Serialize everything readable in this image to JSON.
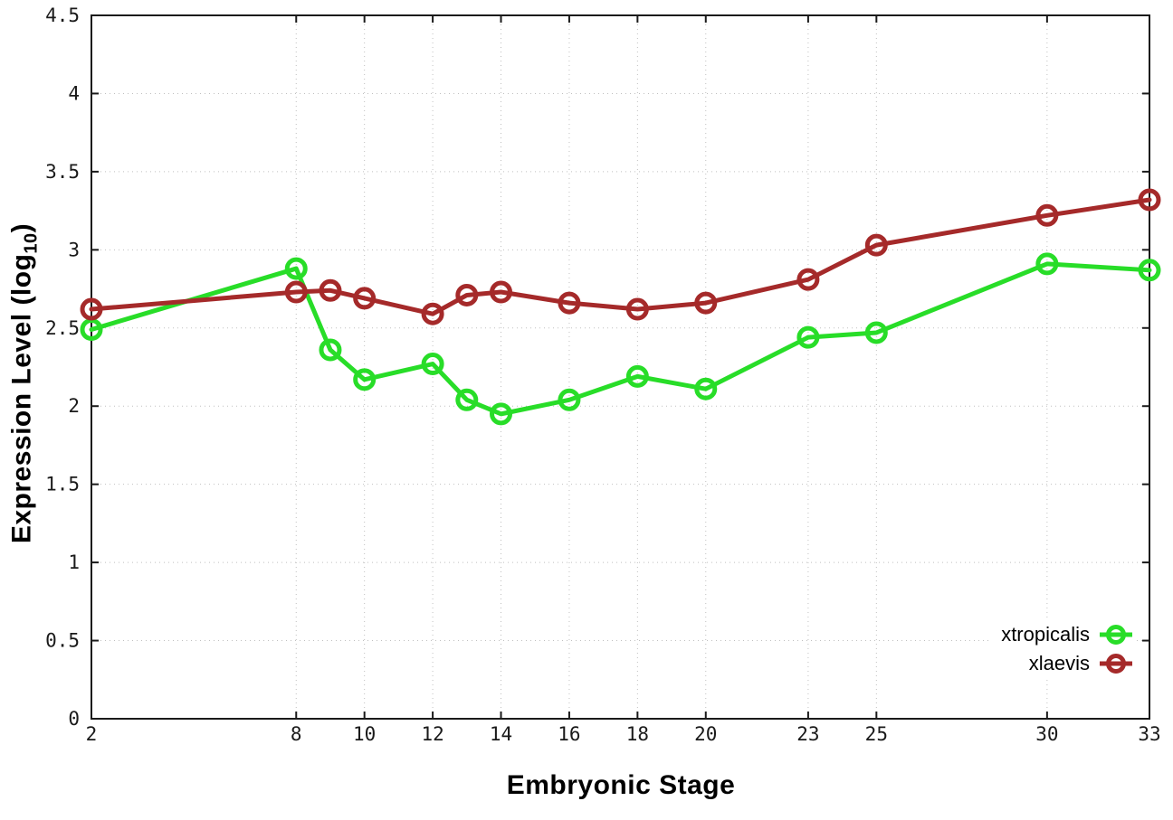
{
  "figure": {
    "background": "#ffffff",
    "xlabel": "Embryonic Stage",
    "ylabel_prefix": "Expression Level (log",
    "ylabel_sub": "10",
    "ylabel_suffix": ")"
  },
  "chart_data": {
    "type": "line",
    "x": [
      2,
      8,
      9,
      10,
      12,
      13,
      14,
      16,
      18,
      20,
      23,
      25,
      30,
      33
    ],
    "series": [
      {
        "name": "xtropicalis",
        "color": "#28dd28",
        "values": [
          2.49,
          2.88,
          2.36,
          2.17,
          2.27,
          2.04,
          1.95,
          2.04,
          2.19,
          2.11,
          2.44,
          2.47,
          2.91,
          2.87
        ]
      },
      {
        "name": "xlaevis",
        "color": "#a52a2a",
        "values": [
          2.62,
          2.73,
          2.74,
          2.69,
          2.59,
          2.71,
          2.73,
          2.66,
          2.62,
          2.66,
          2.81,
          3.03,
          3.22,
          3.32
        ]
      }
    ],
    "xlabel": "Embryonic Stage",
    "ylabel": "Expression Level (log10)",
    "xlim": [
      2,
      33
    ],
    "ylim": [
      0,
      4.5
    ],
    "xticks": [
      2,
      8,
      10,
      12,
      14,
      16,
      18,
      20,
      23,
      25,
      30,
      33
    ],
    "yticks": [
      0,
      0.5,
      1,
      1.5,
      2,
      2.5,
      3,
      3.5,
      4,
      4.5
    ],
    "grid": true,
    "marker": "open-circle",
    "legend_position": "inside-bottom-right",
    "axis_color": "#1a1a1a",
    "grid_color": "#c0c0c0"
  }
}
